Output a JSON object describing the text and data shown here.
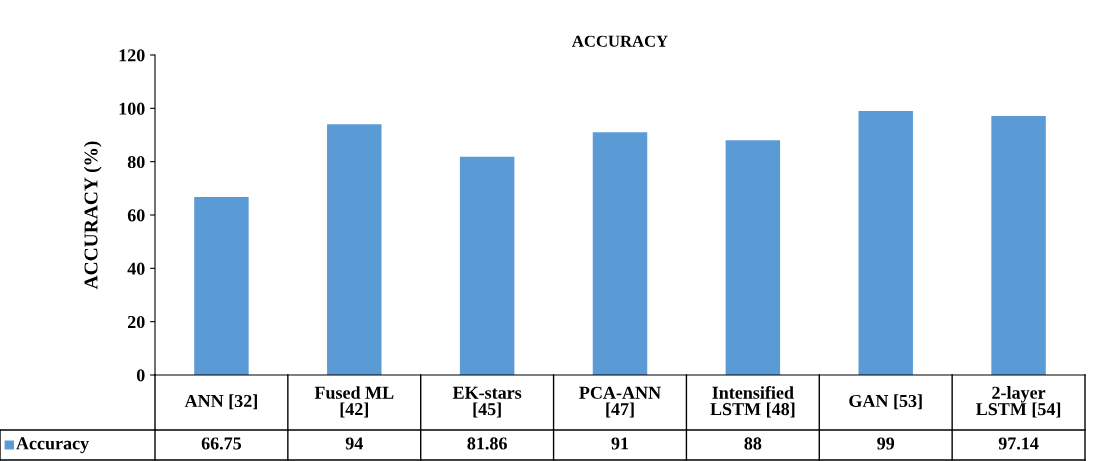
{
  "chart_data": {
    "type": "bar",
    "title": "ACCURACY",
    "ylabel": "ACCURACY (%)",
    "categories": [
      "ANN [32]",
      "Fused ML [42]",
      "EK-stars [45]",
      "PCA-ANN [47]",
      "Intensified LSTM [48]",
      "GAN [53]",
      "2-layer LSTM [54]"
    ],
    "series": [
      {
        "name": "Accuracy",
        "color": "#5b9bd5",
        "values": [
          66.75,
          94,
          81.86,
          91,
          88,
          99,
          97.14
        ]
      }
    ],
    "ylim": [
      0,
      120
    ],
    "yticks": [
      0,
      20,
      40,
      60,
      80,
      100,
      120
    ],
    "grid": false,
    "data_labels": true
  }
}
